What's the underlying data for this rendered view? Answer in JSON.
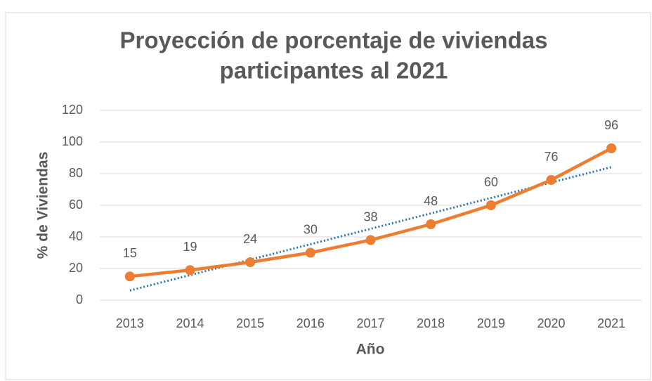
{
  "chart_data": {
    "type": "line",
    "title": [
      "Proyección de porcentaje de viviendas",
      "participantes al 2021"
    ],
    "x_label": "Año",
    "y_label": "% de Viviendas",
    "categories": [
      "2013",
      "2014",
      "2015",
      "2016",
      "2017",
      "2018",
      "2019",
      "2020",
      "2021"
    ],
    "series": [
      {
        "name": "% de Viviendas",
        "color": "#ed7d31",
        "values": [
          15,
          19,
          24,
          30,
          38,
          48,
          60,
          76,
          96
        ]
      }
    ],
    "trendline": {
      "type": "linear",
      "color": "#2e75b6"
    },
    "ylim": [
      0,
      120
    ],
    "yticks": [
      0,
      20,
      40,
      60,
      80,
      100,
      120
    ],
    "grid": true,
    "data_labels": true
  }
}
